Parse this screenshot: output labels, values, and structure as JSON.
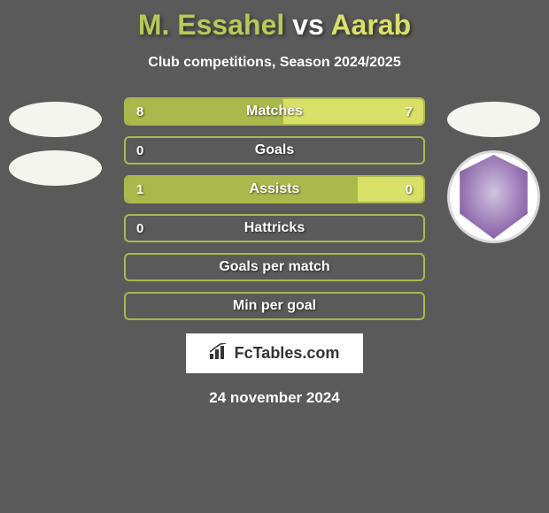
{
  "header": {
    "player1_name": "M. Essahel",
    "vs_text": "vs",
    "player2_name": "Aarab",
    "subtitle": "Club competitions, Season 2024/2025",
    "player1_color": "#b8c957",
    "player2_color": "#d9e067"
  },
  "badges": {
    "left_ellipse1_color": "#f5f5f0",
    "left_ellipse2_color": "#f5f5f0",
    "right_ellipse_color": "#f5f5f0"
  },
  "stats": [
    {
      "label": "Matches",
      "left_value": "8",
      "right_value": "7",
      "left_fill_pct": 53,
      "right_fill_pct": 47,
      "left_fill_color": "#a9b94c",
      "right_fill_color": "#d9e067",
      "border_color": "#a9b94c"
    },
    {
      "label": "Goals",
      "left_value": "0",
      "right_value": "",
      "left_fill_pct": 0,
      "right_fill_pct": 0,
      "left_fill_color": "#a9b94c",
      "right_fill_color": "#d9e067",
      "border_color": "#a9b94c"
    },
    {
      "label": "Assists",
      "left_value": "1",
      "right_value": "0",
      "left_fill_pct": 78,
      "right_fill_pct": 22,
      "left_fill_color": "#a9b94c",
      "right_fill_color": "#d9e067",
      "border_color": "#a9b94c"
    },
    {
      "label": "Hattricks",
      "left_value": "0",
      "right_value": "",
      "left_fill_pct": 0,
      "right_fill_pct": 0,
      "left_fill_color": "#a9b94c",
      "right_fill_color": "#d9e067",
      "border_color": "#a9b94c"
    },
    {
      "label": "Goals per match",
      "left_value": "",
      "right_value": "",
      "left_fill_pct": 0,
      "right_fill_pct": 0,
      "left_fill_color": "#a9b94c",
      "right_fill_color": "#d9e067",
      "border_color": "#a9b94c"
    },
    {
      "label": "Min per goal",
      "left_value": "",
      "right_value": "",
      "left_fill_pct": 0,
      "right_fill_pct": 0,
      "left_fill_color": "#a9b94c",
      "right_fill_color": "#d9e067",
      "border_color": "#a9b94c"
    }
  ],
  "footer": {
    "logo_text": "FcTables.com",
    "date": "24 november 2024"
  },
  "styling": {
    "background_color": "#5a5a5a",
    "stat_row_height": 32,
    "stat_row_gap": 12,
    "stat_rows_width": 340
  }
}
